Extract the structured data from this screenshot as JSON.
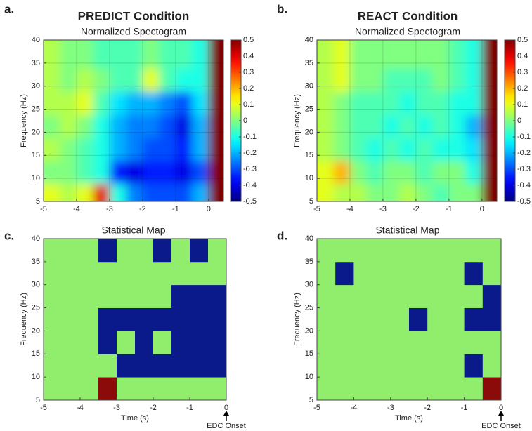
{
  "chart_data": [
    {
      "type": "heatmap",
      "panel": "a.",
      "heading": "PREDICT Condition",
      "title": "Normalized Spectogram",
      "ylabel": "Frequency (Hz)",
      "x_edges": [
        -5,
        -4.5,
        -4,
        -3.5,
        -3,
        -2.5,
        -2,
        -1.5,
        -1,
        -0.5,
        0,
        0.45
      ],
      "y_edges": [
        5,
        10,
        15,
        20,
        25,
        30,
        35,
        40
      ],
      "z": [
        [
          0.1,
          0.05,
          0.1,
          0.4,
          -0.1,
          -0.25,
          -0.3,
          -0.3,
          -0.3,
          -0.2,
          0.5
        ],
        [
          0,
          0,
          -0.05,
          -0.1,
          -0.35,
          -0.4,
          -0.35,
          -0.35,
          -0.4,
          -0.3,
          0.5
        ],
        [
          0.05,
          0,
          -0.05,
          -0.1,
          -0.2,
          -0.25,
          -0.3,
          -0.3,
          -0.35,
          -0.2,
          0.5
        ],
        [
          0,
          0.05,
          0,
          -0.1,
          -0.2,
          -0.25,
          -0.25,
          -0.3,
          -0.4,
          -0.2,
          0.5
        ],
        [
          0.05,
          0.05,
          0.1,
          -0.05,
          -0.15,
          -0.2,
          -0.2,
          -0.25,
          -0.3,
          -0.15,
          0.5
        ],
        [
          0.05,
          0,
          0.05,
          0,
          -0.05,
          -0.05,
          0.1,
          -0.05,
          -0.1,
          -0.1,
          0.5
        ],
        [
          0.05,
          0,
          0,
          -0.05,
          -0.05,
          -0.05,
          0,
          -0.05,
          -0.05,
          -0.1,
          0.5
        ]
      ],
      "xlim": [
        -5,
        0.45
      ],
      "ylim": [
        5,
        40
      ],
      "xticks": [
        -5,
        -4,
        -3,
        -2,
        -1,
        0
      ],
      "yticks": [
        5,
        10,
        15,
        20,
        25,
        30,
        35,
        40
      ],
      "clim": [
        -0.5,
        0.5
      ],
      "cticks": [
        0.5,
        0.4,
        0.3,
        0.2,
        0.1,
        0,
        -0.1,
        -0.2,
        -0.3,
        -0.4,
        -0.5
      ],
      "colormap": "jet"
    },
    {
      "type": "heatmap",
      "panel": "b.",
      "heading": "REACT Condition",
      "title": "Normalized Spectogram",
      "ylabel": "Frequency (Hz)",
      "x_edges": [
        -5,
        -4.5,
        -4,
        -3.5,
        -3,
        -2.5,
        -2,
        -1.5,
        -1,
        -0.5,
        0,
        0.45
      ],
      "y_edges": [
        5,
        10,
        15,
        20,
        25,
        30,
        35,
        40
      ],
      "z": [
        [
          0.1,
          0.05,
          0.05,
          0,
          0,
          0.05,
          0,
          -0.05,
          0,
          0,
          0.5
        ],
        [
          0.1,
          0.2,
          0,
          -0.05,
          0,
          0,
          -0.05,
          0,
          0,
          -0.1,
          0.5
        ],
        [
          0.05,
          0,
          -0.05,
          -0.1,
          -0.05,
          -0.1,
          -0.05,
          -0.1,
          -0.1,
          -0.15,
          0.5
        ],
        [
          0.05,
          0,
          -0.05,
          -0.05,
          -0.1,
          -0.05,
          -0.1,
          -0.05,
          -0.1,
          -0.2,
          0.5
        ],
        [
          0.05,
          0,
          -0.05,
          -0.05,
          -0.05,
          -0.1,
          -0.05,
          -0.05,
          -0.1,
          -0.1,
          0.5
        ],
        [
          0.05,
          0.1,
          0,
          0,
          -0.05,
          -0.05,
          -0.05,
          0,
          -0.05,
          -0.1,
          0.5
        ],
        [
          0.05,
          0.1,
          0,
          0,
          0,
          0,
          0,
          0,
          -0.05,
          -0.1,
          0.5
        ]
      ],
      "xlim": [
        -5,
        0.45
      ],
      "ylim": [
        5,
        40
      ],
      "xticks": [
        -5,
        -4,
        -3,
        -2,
        -1,
        0
      ],
      "yticks": [
        5,
        10,
        15,
        20,
        25,
        30,
        35,
        40
      ],
      "clim": [
        -0.5,
        0.5
      ],
      "cticks": [
        0.5,
        0.4,
        0.3,
        0.2,
        0.1,
        0,
        -0.1,
        -0.2,
        -0.3,
        -0.4,
        -0.5
      ],
      "colormap": "jet"
    },
    {
      "type": "heatmap",
      "panel": "c.",
      "title": "Statistical Map",
      "xlabel": "Time (s)",
      "ylabel": "Frequency (Hz)",
      "annotation": "EDC Onset",
      "x_edges": [
        -5,
        -4.5,
        -4,
        -3.5,
        -3,
        -2.5,
        -2,
        -1.5,
        -1,
        -0.5,
        0
      ],
      "y_edges": [
        5,
        10,
        15,
        20,
        25,
        30,
        35,
        40
      ],
      "z": [
        [
          0,
          0,
          0,
          1,
          0,
          0,
          0,
          0,
          0,
          0
        ],
        [
          0,
          0,
          0,
          0,
          -1,
          -1,
          -1,
          -1,
          -1,
          -1
        ],
        [
          0,
          0,
          0,
          -1,
          0,
          -1,
          0,
          -1,
          -1,
          -1
        ],
        [
          0,
          0,
          0,
          -1,
          -1,
          -1,
          -1,
          -1,
          -1,
          -1
        ],
        [
          0,
          0,
          0,
          0,
          0,
          0,
          0,
          -1,
          -1,
          -1
        ],
        [
          0,
          0,
          0,
          0,
          0,
          0,
          0,
          0,
          0,
          0
        ],
        [
          0,
          0,
          0,
          -1,
          0,
          0,
          -1,
          0,
          -1,
          0
        ]
      ],
      "xlim": [
        -5,
        0
      ],
      "ylim": [
        5,
        40
      ],
      "xticks": [
        -5,
        -4,
        -3,
        -2,
        -1,
        0
      ],
      "yticks": [
        5,
        10,
        15,
        20,
        25,
        30,
        35,
        40
      ],
      "levels": [
        -1,
        0,
        1
      ],
      "level_colors": [
        "#0a1a8a",
        "#91ee6d",
        "#8b0a0a"
      ]
    },
    {
      "type": "heatmap",
      "panel": "d.",
      "title": "Statistical Map",
      "xlabel": "Time (s)",
      "ylabel": "Frequency (Hz)",
      "annotation": "EDC Onset",
      "x_edges": [
        -5,
        -4.5,
        -4,
        -3.5,
        -3,
        -2.5,
        -2,
        -1.5,
        -1,
        -0.5,
        0
      ],
      "y_edges": [
        5,
        10,
        15,
        20,
        25,
        30,
        35,
        40
      ],
      "z": [
        [
          0,
          0,
          0,
          0,
          0,
          0,
          0,
          0,
          0,
          1
        ],
        [
          0,
          0,
          0,
          0,
          0,
          0,
          0,
          0,
          -1,
          0
        ],
        [
          0,
          0,
          0,
          0,
          0,
          0,
          0,
          0,
          0,
          0
        ],
        [
          0,
          0,
          0,
          0,
          0,
          -1,
          0,
          0,
          -1,
          -1
        ],
        [
          0,
          0,
          0,
          0,
          0,
          0,
          0,
          0,
          0,
          -1
        ],
        [
          0,
          -1,
          0,
          0,
          0,
          0,
          0,
          0,
          -1,
          0
        ],
        [
          0,
          0,
          0,
          0,
          0,
          0,
          0,
          0,
          0,
          0
        ]
      ],
      "xlim": [
        -5,
        0
      ],
      "ylim": [
        5,
        40
      ],
      "xticks": [
        -5,
        -4,
        -3,
        -2,
        -1,
        0
      ],
      "yticks": [
        5,
        10,
        15,
        20,
        25,
        30,
        35,
        40
      ],
      "levels": [
        -1,
        0,
        1
      ],
      "level_colors": [
        "#0a1a8a",
        "#91ee6d",
        "#8b0a0a"
      ]
    }
  ]
}
